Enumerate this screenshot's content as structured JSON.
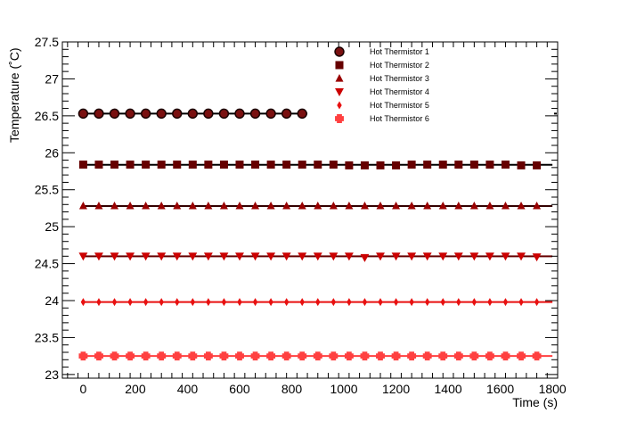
{
  "chart_data": {
    "type": "scatter",
    "xlabel": "Time (s)",
    "ylabel": "Temperature (˚C)",
    "xlim": [
      -80,
      1820
    ],
    "ylim": [
      22.95,
      27.5
    ],
    "x_ticks": [
      0,
      200,
      400,
      600,
      800,
      1000,
      1200,
      1400,
      1600,
      1800
    ],
    "y_ticks": [
      23,
      23.5,
      24,
      24.5,
      25,
      25.5,
      26,
      26.5,
      27,
      27.5
    ],
    "y_tick_labels": [
      "23",
      "23.5",
      "24",
      "24.5",
      "25",
      "25.5",
      "26",
      "26.5",
      "27",
      "27.5"
    ],
    "grid": false,
    "legend_position": "top-right",
    "series": [
      {
        "name": "Hot Thermistor 1",
        "marker": "circle",
        "color": "#1a0000",
        "fill": "#7a1010",
        "fit_color": "#000000",
        "fit_range": [
          0,
          860
        ],
        "x": [
          0,
          60,
          120,
          180,
          240,
          300,
          360,
          420,
          480,
          540,
          600,
          660,
          720,
          780,
          840
        ],
        "y": [
          26.53,
          26.53,
          26.53,
          26.53,
          26.53,
          26.53,
          26.53,
          26.53,
          26.53,
          26.53,
          26.53,
          26.53,
          26.53,
          26.53,
          26.53
        ]
      },
      {
        "name": "Hot Thermistor 2",
        "marker": "square",
        "color": "#660000",
        "fit_color": "#000000",
        "fit_range": [
          0,
          1800
        ],
        "x": [
          0,
          60,
          120,
          180,
          240,
          300,
          360,
          420,
          480,
          540,
          600,
          660,
          720,
          780,
          840,
          900,
          960,
          1020,
          1080,
          1140,
          1200,
          1260,
          1320,
          1380,
          1440,
          1500,
          1560,
          1620,
          1680,
          1740
        ],
        "y": [
          25.84,
          25.84,
          25.84,
          25.84,
          25.84,
          25.84,
          25.84,
          25.84,
          25.84,
          25.84,
          25.84,
          25.84,
          25.84,
          25.84,
          25.84,
          25.84,
          25.84,
          25.83,
          25.83,
          25.83,
          25.83,
          25.84,
          25.84,
          25.84,
          25.84,
          25.84,
          25.84,
          25.84,
          25.83,
          25.83
        ]
      },
      {
        "name": "Hot Thermistor 3",
        "marker": "triangle-up",
        "color": "#990000",
        "fit_color": "#330000",
        "fit_range": [
          0,
          1800
        ],
        "x": [
          0,
          60,
          120,
          180,
          240,
          300,
          360,
          420,
          480,
          540,
          600,
          660,
          720,
          780,
          840,
          900,
          960,
          1020,
          1080,
          1140,
          1200,
          1260,
          1320,
          1380,
          1440,
          1500,
          1560,
          1620,
          1680,
          1740
        ],
        "y": [
          25.28,
          25.28,
          25.28,
          25.28,
          25.28,
          25.28,
          25.28,
          25.28,
          25.28,
          25.28,
          25.28,
          25.28,
          25.28,
          25.28,
          25.28,
          25.28,
          25.28,
          25.28,
          25.28,
          25.28,
          25.28,
          25.28,
          25.28,
          25.28,
          25.28,
          25.28,
          25.28,
          25.28,
          25.28,
          25.28
        ]
      },
      {
        "name": "Hot Thermistor 4",
        "marker": "triangle-down",
        "color": "#cc0000",
        "fit_color": "#660000",
        "fit_range": [
          0,
          1800
        ],
        "x": [
          0,
          60,
          120,
          180,
          240,
          300,
          360,
          420,
          480,
          540,
          600,
          660,
          720,
          780,
          840,
          900,
          960,
          1020,
          1080,
          1140,
          1200,
          1260,
          1320,
          1380,
          1440,
          1500,
          1560,
          1620,
          1680,
          1740
        ],
        "y": [
          24.6,
          24.6,
          24.6,
          24.6,
          24.6,
          24.6,
          24.6,
          24.6,
          24.6,
          24.6,
          24.6,
          24.6,
          24.6,
          24.6,
          24.6,
          24.6,
          24.6,
          24.6,
          24.58,
          24.6,
          24.6,
          24.6,
          24.6,
          24.6,
          24.6,
          24.6,
          24.6,
          24.6,
          24.6,
          24.59
        ]
      },
      {
        "name": "Hot Thermistor 5",
        "marker": "diamond",
        "color": "#e81010",
        "fit_color": "#e81010",
        "fit_range": [
          0,
          1800
        ],
        "x": [
          0,
          60,
          120,
          180,
          240,
          300,
          360,
          420,
          480,
          540,
          600,
          660,
          720,
          780,
          840,
          900,
          960,
          1020,
          1080,
          1140,
          1200,
          1260,
          1320,
          1380,
          1440,
          1500,
          1560,
          1620,
          1680,
          1740
        ],
        "y": [
          23.98,
          23.98,
          23.98,
          23.98,
          23.98,
          23.98,
          23.98,
          23.98,
          23.98,
          23.98,
          23.98,
          23.98,
          23.98,
          23.98,
          23.98,
          23.98,
          23.98,
          23.98,
          23.98,
          23.98,
          23.98,
          23.98,
          23.98,
          23.98,
          23.98,
          23.98,
          23.98,
          23.98,
          23.98,
          23.98
        ]
      },
      {
        "name": "Hot Thermistor 6",
        "marker": "cross",
        "color": "#ff4040",
        "fit_color": "#ff4040",
        "fit_range": [
          0,
          1800
        ],
        "x": [
          0,
          60,
          120,
          180,
          240,
          300,
          360,
          420,
          480,
          540,
          600,
          660,
          720,
          780,
          840,
          900,
          960,
          1020,
          1080,
          1140,
          1200,
          1260,
          1320,
          1380,
          1440,
          1500,
          1560,
          1620,
          1680,
          1740
        ],
        "y": [
          23.25,
          23.25,
          23.25,
          23.25,
          23.25,
          23.25,
          23.25,
          23.25,
          23.25,
          23.25,
          23.25,
          23.25,
          23.25,
          23.25,
          23.25,
          23.25,
          23.25,
          23.25,
          23.25,
          23.25,
          23.25,
          23.25,
          23.25,
          23.25,
          23.25,
          23.25,
          23.25,
          23.25,
          23.25,
          23.25
        ]
      }
    ]
  }
}
